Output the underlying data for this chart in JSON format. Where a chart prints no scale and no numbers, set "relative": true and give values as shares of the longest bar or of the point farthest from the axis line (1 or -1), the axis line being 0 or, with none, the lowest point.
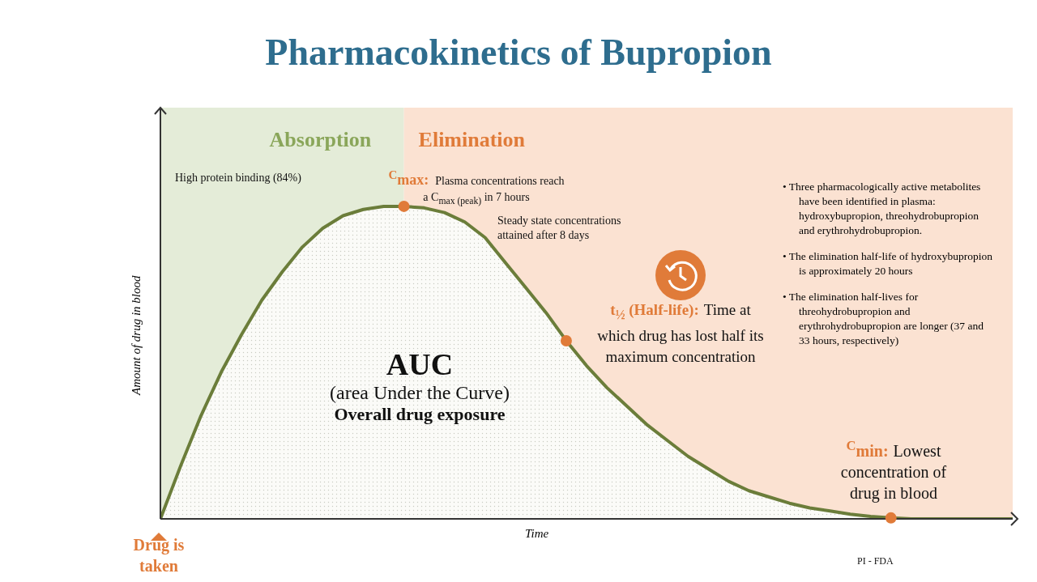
{
  "chart_data": {
    "type": "area",
    "title": "Pharmacokinetics of Bupropion",
    "xlabel": "Time",
    "ylabel": "Amount of drug in blood",
    "relative": true,
    "categories": [
      null,
      null,
      null,
      null,
      null,
      null,
      null,
      null,
      null,
      null,
      null,
      null,
      null,
      null,
      null,
      null,
      null,
      null,
      null,
      null,
      null,
      null,
      null,
      null,
      null,
      null,
      null,
      null,
      null,
      null,
      null,
      null,
      null,
      null,
      null,
      null,
      null,
      null,
      null,
      null,
      null,
      null,
      null
    ],
    "series": [
      {
        "color": "#6b7d3a",
        "values": [
          0,
          0.17,
          0.33,
          0.47,
          0.59,
          0.7,
          0.79,
          0.87,
          0.93,
          0.97,
          0.99,
          1,
          1,
          0.995,
          0.98,
          0.95,
          0.9,
          0.82,
          0.74,
          0.66,
          0.57,
          0.49,
          0.42,
          0.36,
          0.3,
          0.25,
          0.2,
          0.16,
          0.12,
          0.09,
          0.07,
          0.05,
          0.035,
          0.025,
          0.015,
          0.008,
          0.003,
          0,
          0,
          0,
          0,
          0,
          0
        ]
      }
    ],
    "annotations": [
      "High protein binding (84%)",
      "$^{C}$max:",
      "Plasma concentrations reach a C$_{max (peak)}$ in 7 hours",
      "Steady state concentrations attained after 8 days",
      "t$_{½}$ (Half-life):",
      "Time at which drug has lost half its maximum concentration",
      "AUC",
      "(area Under the Curve)",
      "Overall drug exposure",
      "• Three pharmacologically active metabolites have been identified in plasma: hydroxybupropion, threohydrobupropion and erythrohydrobupropion.",
      "• The elimination half-life of hydroxybupropion is approximately 20 hours",
      "• The elimination half-lives for threohydrobupropion and erythrohydrobupropion are longer (37 and 33 hours, respectively)",
      "$^{C}$min:",
      "Lowest concentration of drug in blood",
      "Drug is taken",
      "PI - FDA",
      "Absorption",
      "Elimination"
    ]
  }
}
